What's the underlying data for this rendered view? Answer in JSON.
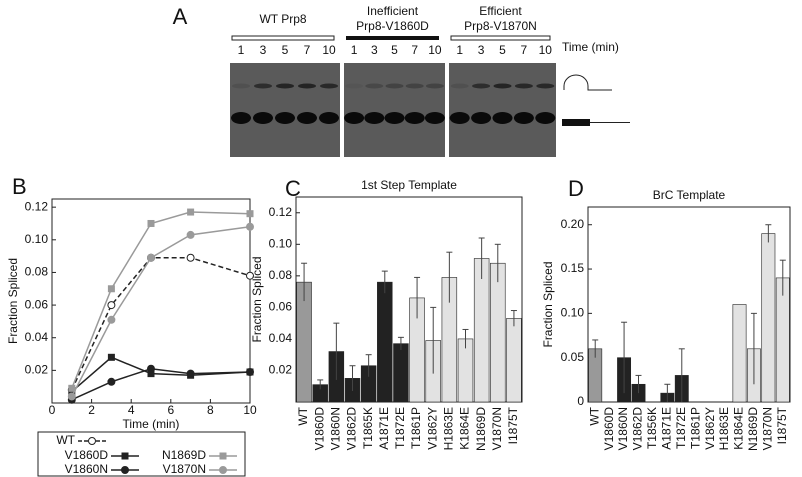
{
  "gel": {
    "label": "A",
    "groups": [
      {
        "title": [
          "WT Prp8"
        ],
        "lanes": [
          "1",
          "3",
          "5",
          "7",
          "10"
        ]
      },
      {
        "title": [
          "Inefficient",
          "Prp8-V1860D"
        ],
        "lanes": [
          "1",
          "3",
          "5",
          "7",
          "10"
        ]
      },
      {
        "title": [
          "Efficient",
          "Prp8-V1870N"
        ],
        "lanes": [
          "1",
          "3",
          "5",
          "7",
          "10"
        ]
      }
    ],
    "time_label": "Time (min)"
  },
  "chart_data": [
    {
      "type": "line",
      "label": "B",
      "xlabel": "Time (min)",
      "ylabel": "Fraction Spliced",
      "x": [
        1,
        3,
        5,
        7,
        10
      ],
      "xlim": [
        0,
        10
      ],
      "xticks": [
        0,
        2,
        4,
        6,
        8,
        10
      ],
      "ylim": [
        0,
        0.125
      ],
      "yticks": [
        0.02,
        0.04,
        0.06,
        0.08,
        {
          "value": 0.1,
          "label": "0.10"
        },
        0.12
      ],
      "series": [
        {
          "name": "WT",
          "color": "#222222",
          "marker": "circle-open",
          "dashed": true,
          "values": [
            0.008,
            0.06,
            0.089,
            0.089,
            0.078
          ]
        },
        {
          "name": "V1860D",
          "color": "#222222",
          "marker": "square",
          "dashed": false,
          "values": [
            0.007,
            0.028,
            0.018,
            0.017,
            0.019
          ]
        },
        {
          "name": "V1860N",
          "color": "#222222",
          "marker": "circle",
          "dashed": false,
          "values": [
            0.002,
            0.013,
            0.021,
            0.018,
            0.019
          ]
        },
        {
          "name": "N1869D",
          "color": "#9a9a9a",
          "marker": "square",
          "dashed": false,
          "values": [
            0.009,
            0.07,
            0.11,
            0.117,
            0.116
          ]
        },
        {
          "name": "V1870N",
          "color": "#9a9a9a",
          "marker": "circle",
          "dashed": false,
          "values": [
            0.004,
            0.051,
            0.089,
            0.103,
            0.108
          ]
        }
      ]
    },
    {
      "type": "bar",
      "label": "C",
      "title": "1st Step Template",
      "ylabel": "Fraction Spliced",
      "categories": [
        "WT",
        "V1860D",
        "V1860N",
        "V1862D",
        "T1865K",
        "A1871E",
        "T1872E",
        "T1861P",
        "V1862Y",
        "H1863E",
        "K1864E",
        "N1869D",
        "V1870N",
        "I1875T"
      ],
      "values": [
        0.076,
        0.011,
        0.032,
        0.015,
        0.023,
        0.076,
        0.037,
        0.066,
        0.039,
        0.079,
        0.04,
        0.091,
        0.088,
        0.053
      ],
      "errors": [
        0.012,
        0.003,
        0.018,
        0.008,
        0.007,
        0.007,
        0.004,
        0.013,
        0.021,
        0.016,
        0.006,
        0.013,
        0.012,
        0.005
      ],
      "colors": [
        "#999999",
        "#222222",
        "#222222",
        "#222222",
        "#222222",
        "#222222",
        "#222222",
        "#e2e2e2",
        "#e2e2e2",
        "#e2e2e2",
        "#e2e2e2",
        "#e2e2e2",
        "#e2e2e2",
        "#e2e2e2"
      ],
      "ylim": [
        0,
        0.13
      ],
      "yticks": [
        0.02,
        0.04,
        0.06,
        0.08,
        {
          "value": 0.1,
          "label": "0.10"
        },
        0.12
      ]
    },
    {
      "type": "bar",
      "label": "D",
      "title": "BrC Template",
      "ylabel": "Fraction Spliced",
      "categories": [
        "WT",
        "V1860D",
        "V1860N",
        "V1862D",
        "T1856K",
        "A1871E",
        "T1872E",
        "T1861P",
        "V1862Y",
        "H1863E",
        "K1864E",
        "N1869D",
        "V1870N",
        "I1875T"
      ],
      "values": [
        0.06,
        0,
        0.05,
        0.02,
        0,
        0.01,
        0.03,
        0,
        0,
        0,
        0.11,
        0.06,
        0.19,
        0.14
      ],
      "errors": [
        0.01,
        null,
        0.04,
        0.01,
        null,
        0.01,
        0.03,
        null,
        null,
        null,
        null,
        0.04,
        0.01,
        0.02
      ],
      "colors": [
        "#999999",
        "#222222",
        "#222222",
        "#222222",
        "#222222",
        "#222222",
        "#222222",
        "#e2e2e2",
        "#e2e2e2",
        "#e2e2e2",
        "#e2e2e2",
        "#e2e2e2",
        "#e2e2e2",
        "#e2e2e2"
      ],
      "ylim": [
        0,
        0.22
      ],
      "yticks": [
        0,
        0.05,
        {
          "value": 0.1,
          "label": "0.10"
        },
        0.15,
        {
          "value": 0.2,
          "label": "0.20"
        }
      ]
    }
  ]
}
